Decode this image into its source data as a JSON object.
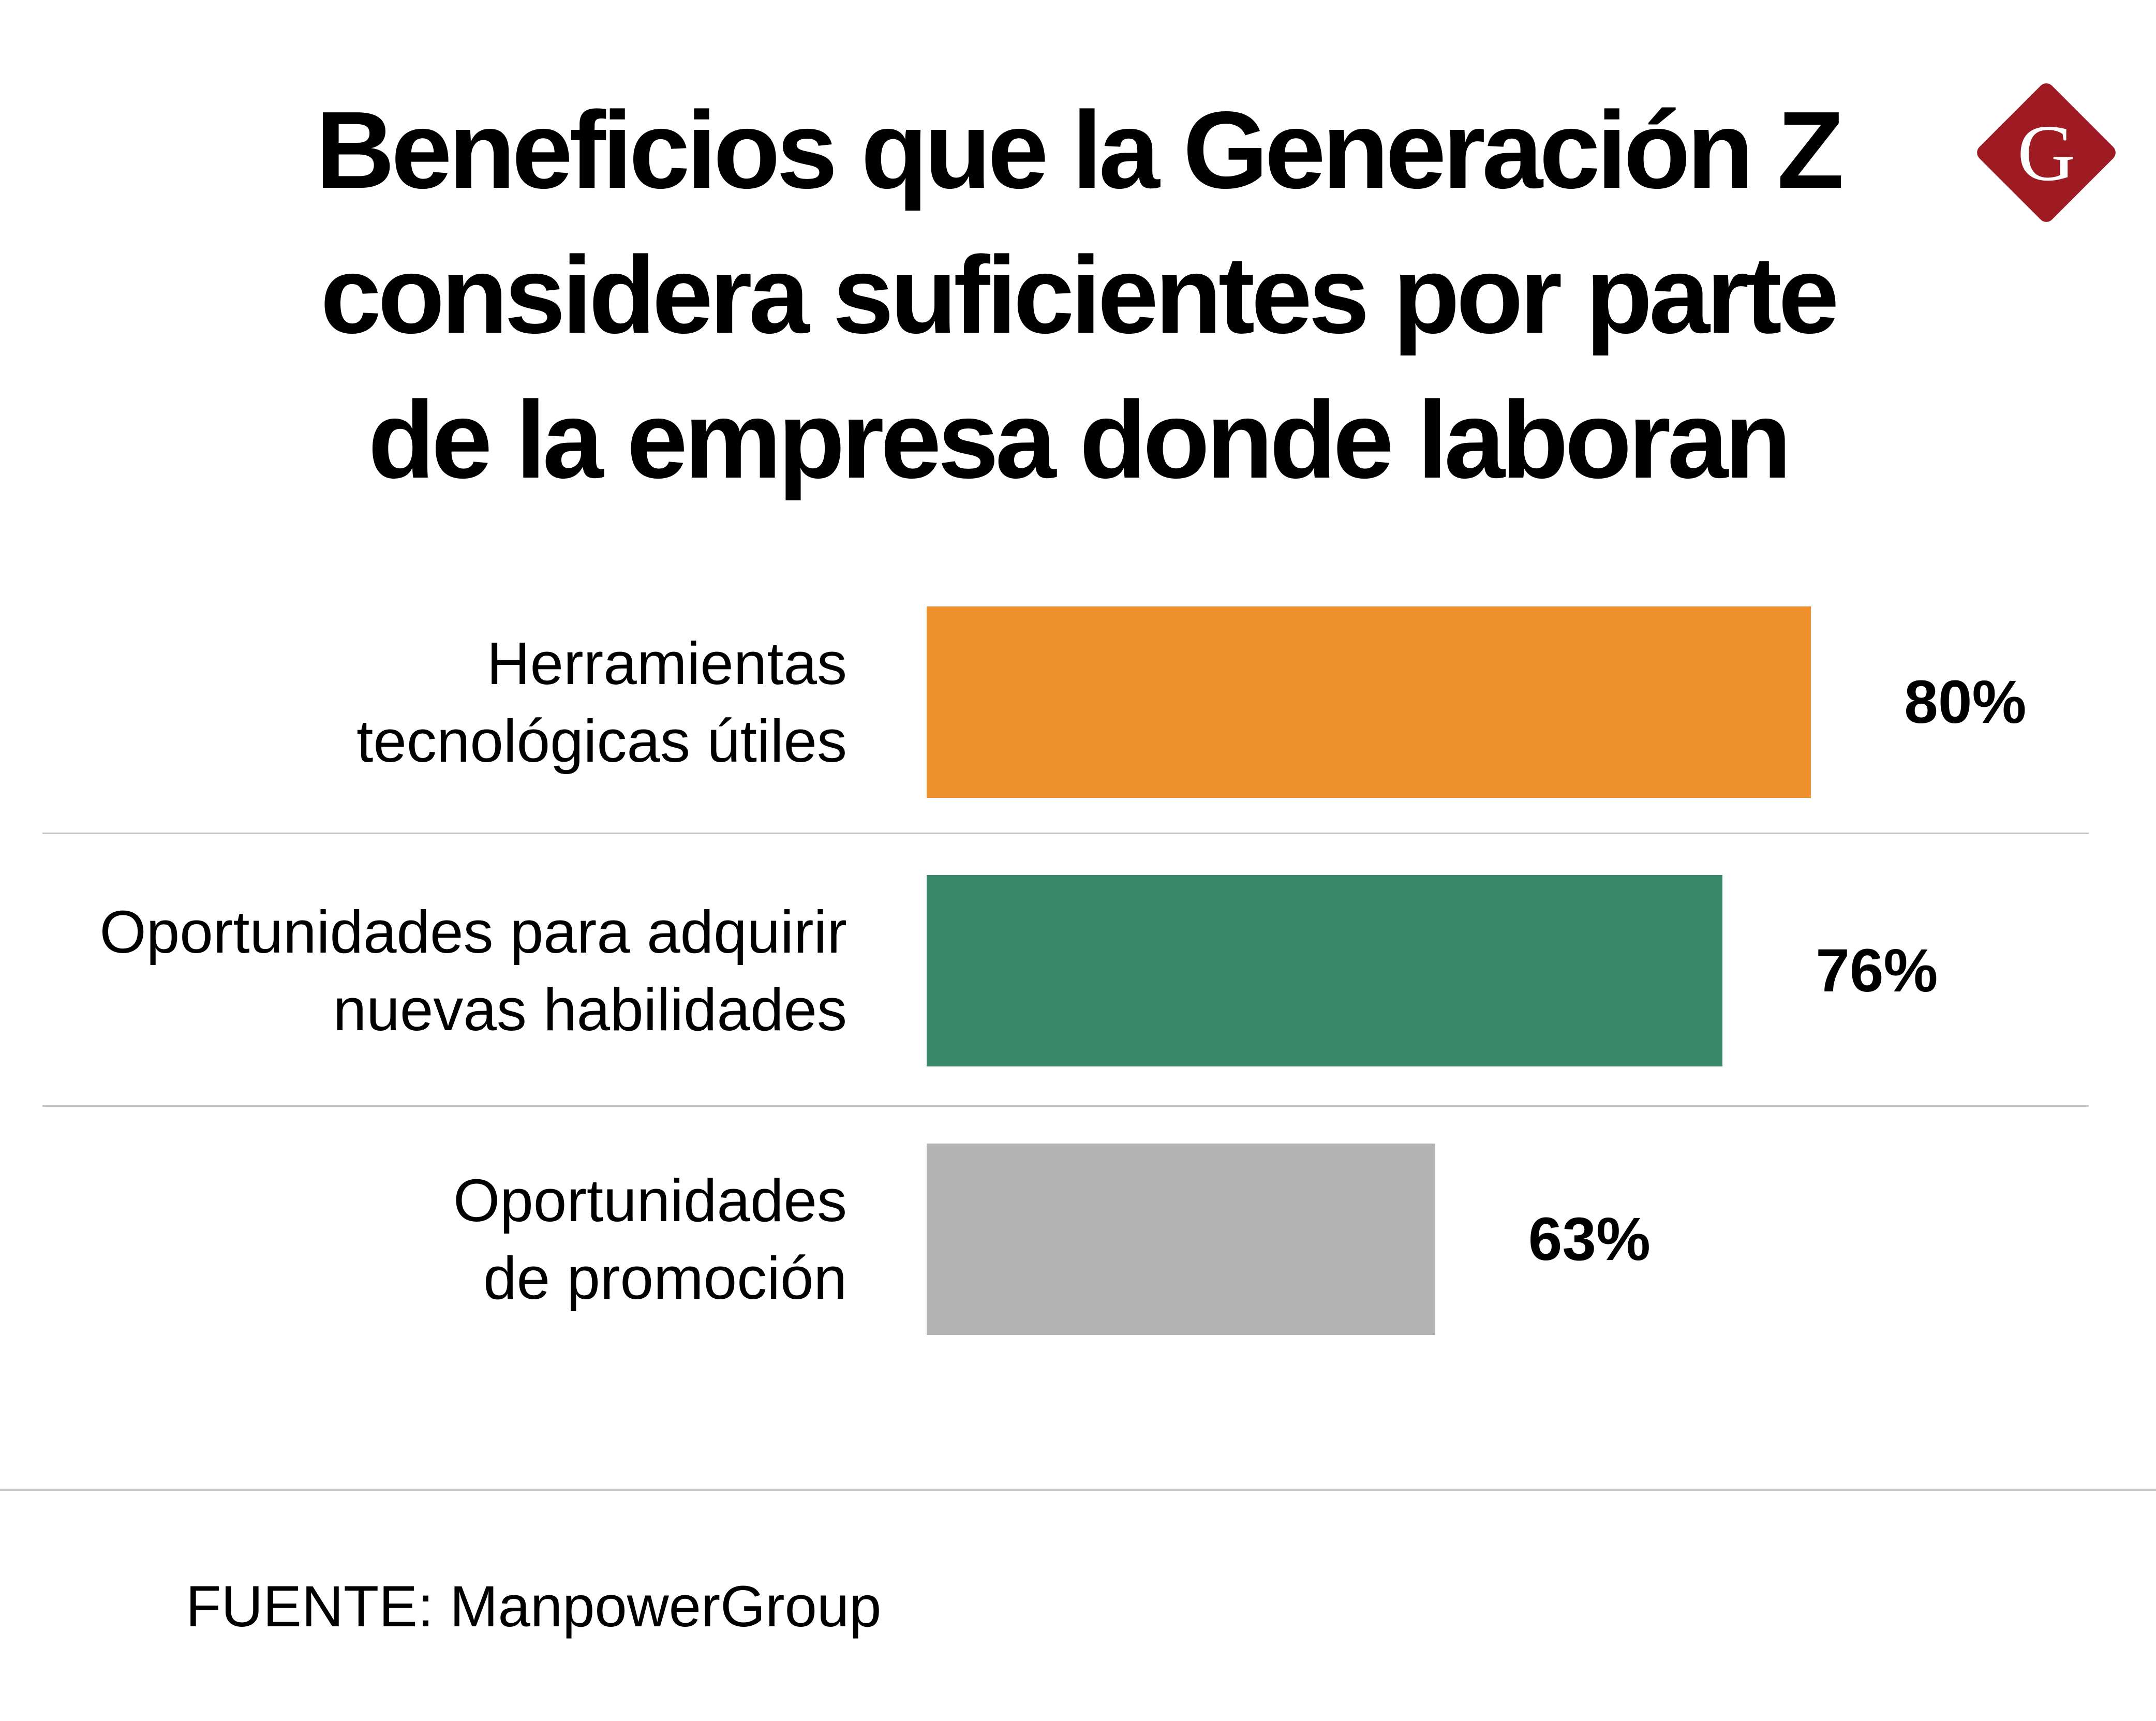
{
  "title_lines": [
    "Beneficios que la Generación Z",
    "considera suficientes por parte",
    "de la empresa donde laboran"
  ],
  "logo": {
    "letter": "G",
    "color": "#9E1B24"
  },
  "source": "FUENTE: ManpowerGroup",
  "chart_data": {
    "type": "bar",
    "orientation": "horizontal",
    "title": "Beneficios que la Generación Z considera suficientes por parte de la empresa donde laboran",
    "categories": [
      [
        "Herramientas",
        "tecnológicas útiles"
      ],
      [
        "Oportunidades para adquirir",
        "nuevas habilidades"
      ],
      [
        "Oportunidades",
        "de promoción"
      ]
    ],
    "values": [
      80,
      76,
      63
    ],
    "value_labels": [
      "80%",
      "76%",
      "63%"
    ],
    "colors": [
      "#EF922D",
      "#3A886A",
      "#B3B2B2"
    ],
    "xlim": [
      40,
      100
    ],
    "grid": false,
    "legend": "none"
  }
}
